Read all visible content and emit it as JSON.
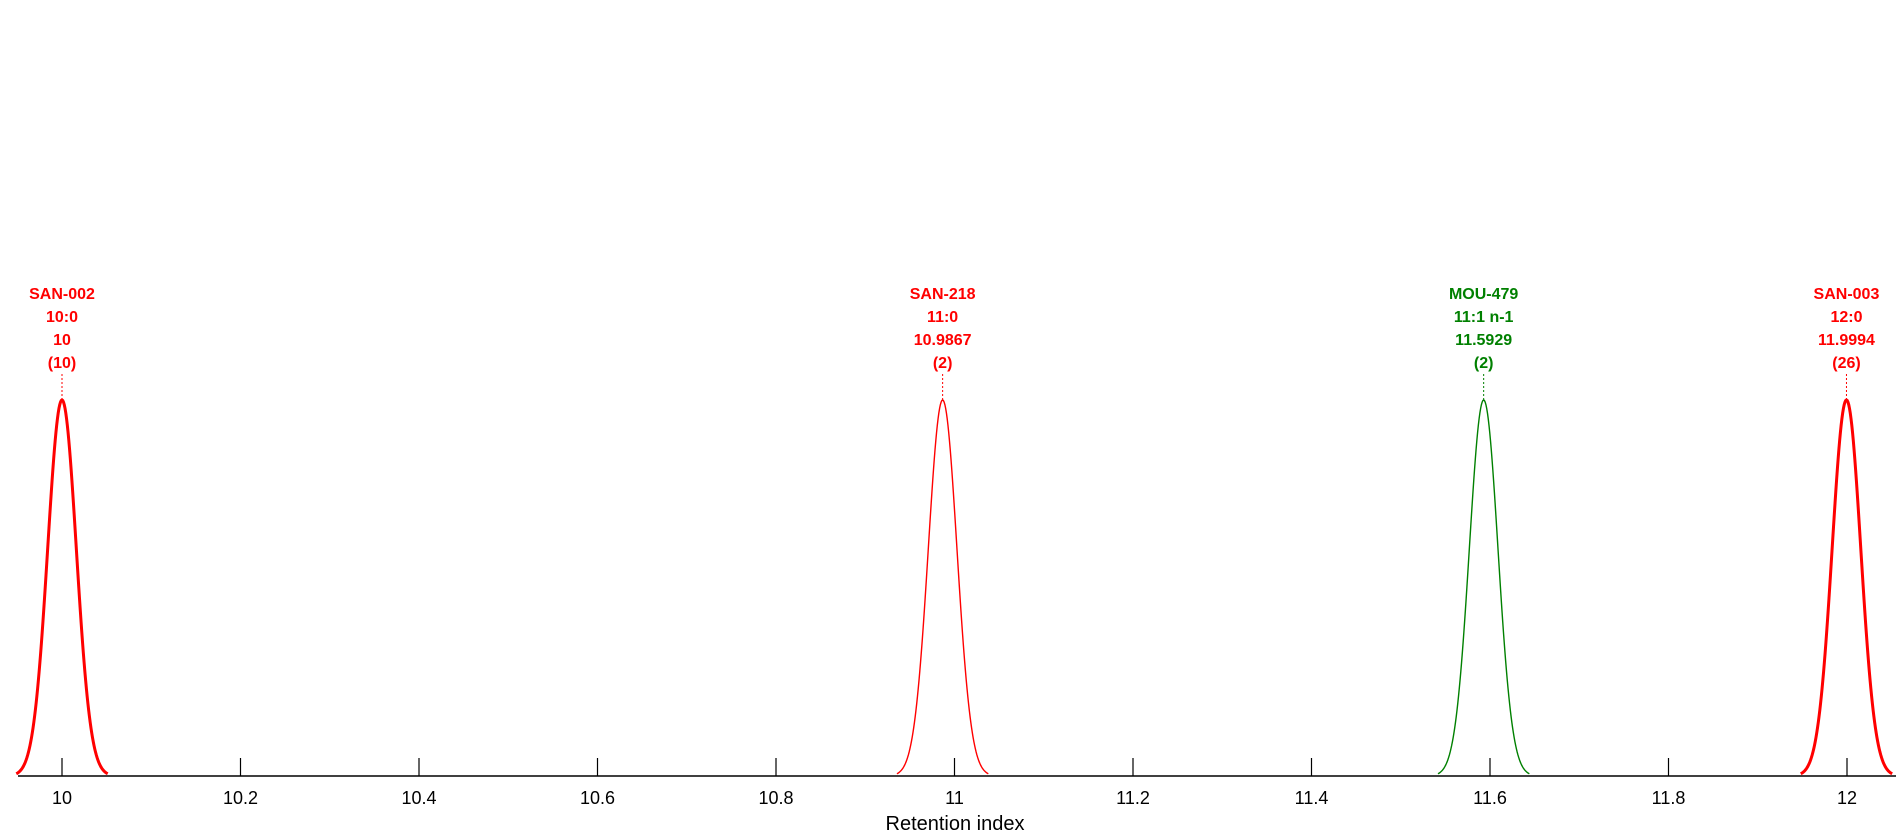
{
  "chart_data": {
    "type": "line",
    "title": "",
    "xlabel": "Retention index",
    "ylabel": "",
    "xlim": [
      9.95,
      12.05
    ],
    "ylim": [
      0,
      1
    ],
    "grid": false,
    "x_ticks": [
      "10",
      "10.2",
      "10.4",
      "10.6",
      "10.8",
      "11",
      "11.2",
      "11.4",
      "11.6",
      "11.8",
      "12"
    ],
    "peaks": [
      {
        "id": "SAN-002",
        "label": "10:0",
        "ri": "10",
        "count": "(10)",
        "x": 10.0,
        "height": 0.5,
        "width": 0.016,
        "color": "#ff0000",
        "bold": true
      },
      {
        "id": "SAN-218",
        "label": "11:0",
        "ri": "10.9867",
        "count": "(2)",
        "x": 10.9867,
        "height": 0.5,
        "width": 0.016,
        "color": "#ff0000",
        "bold": false
      },
      {
        "id": "MOU-479",
        "label": "11:1 n-1",
        "ri": "11.5929",
        "count": "(2)",
        "x": 11.5929,
        "height": 0.5,
        "width": 0.016,
        "color": "#008000",
        "bold": false
      },
      {
        "id": "SAN-003",
        "label": "12:0",
        "ri": "11.9994",
        "count": "(26)",
        "x": 11.9994,
        "height": 0.5,
        "width": 0.016,
        "color": "#ff0000",
        "bold": true
      }
    ]
  }
}
